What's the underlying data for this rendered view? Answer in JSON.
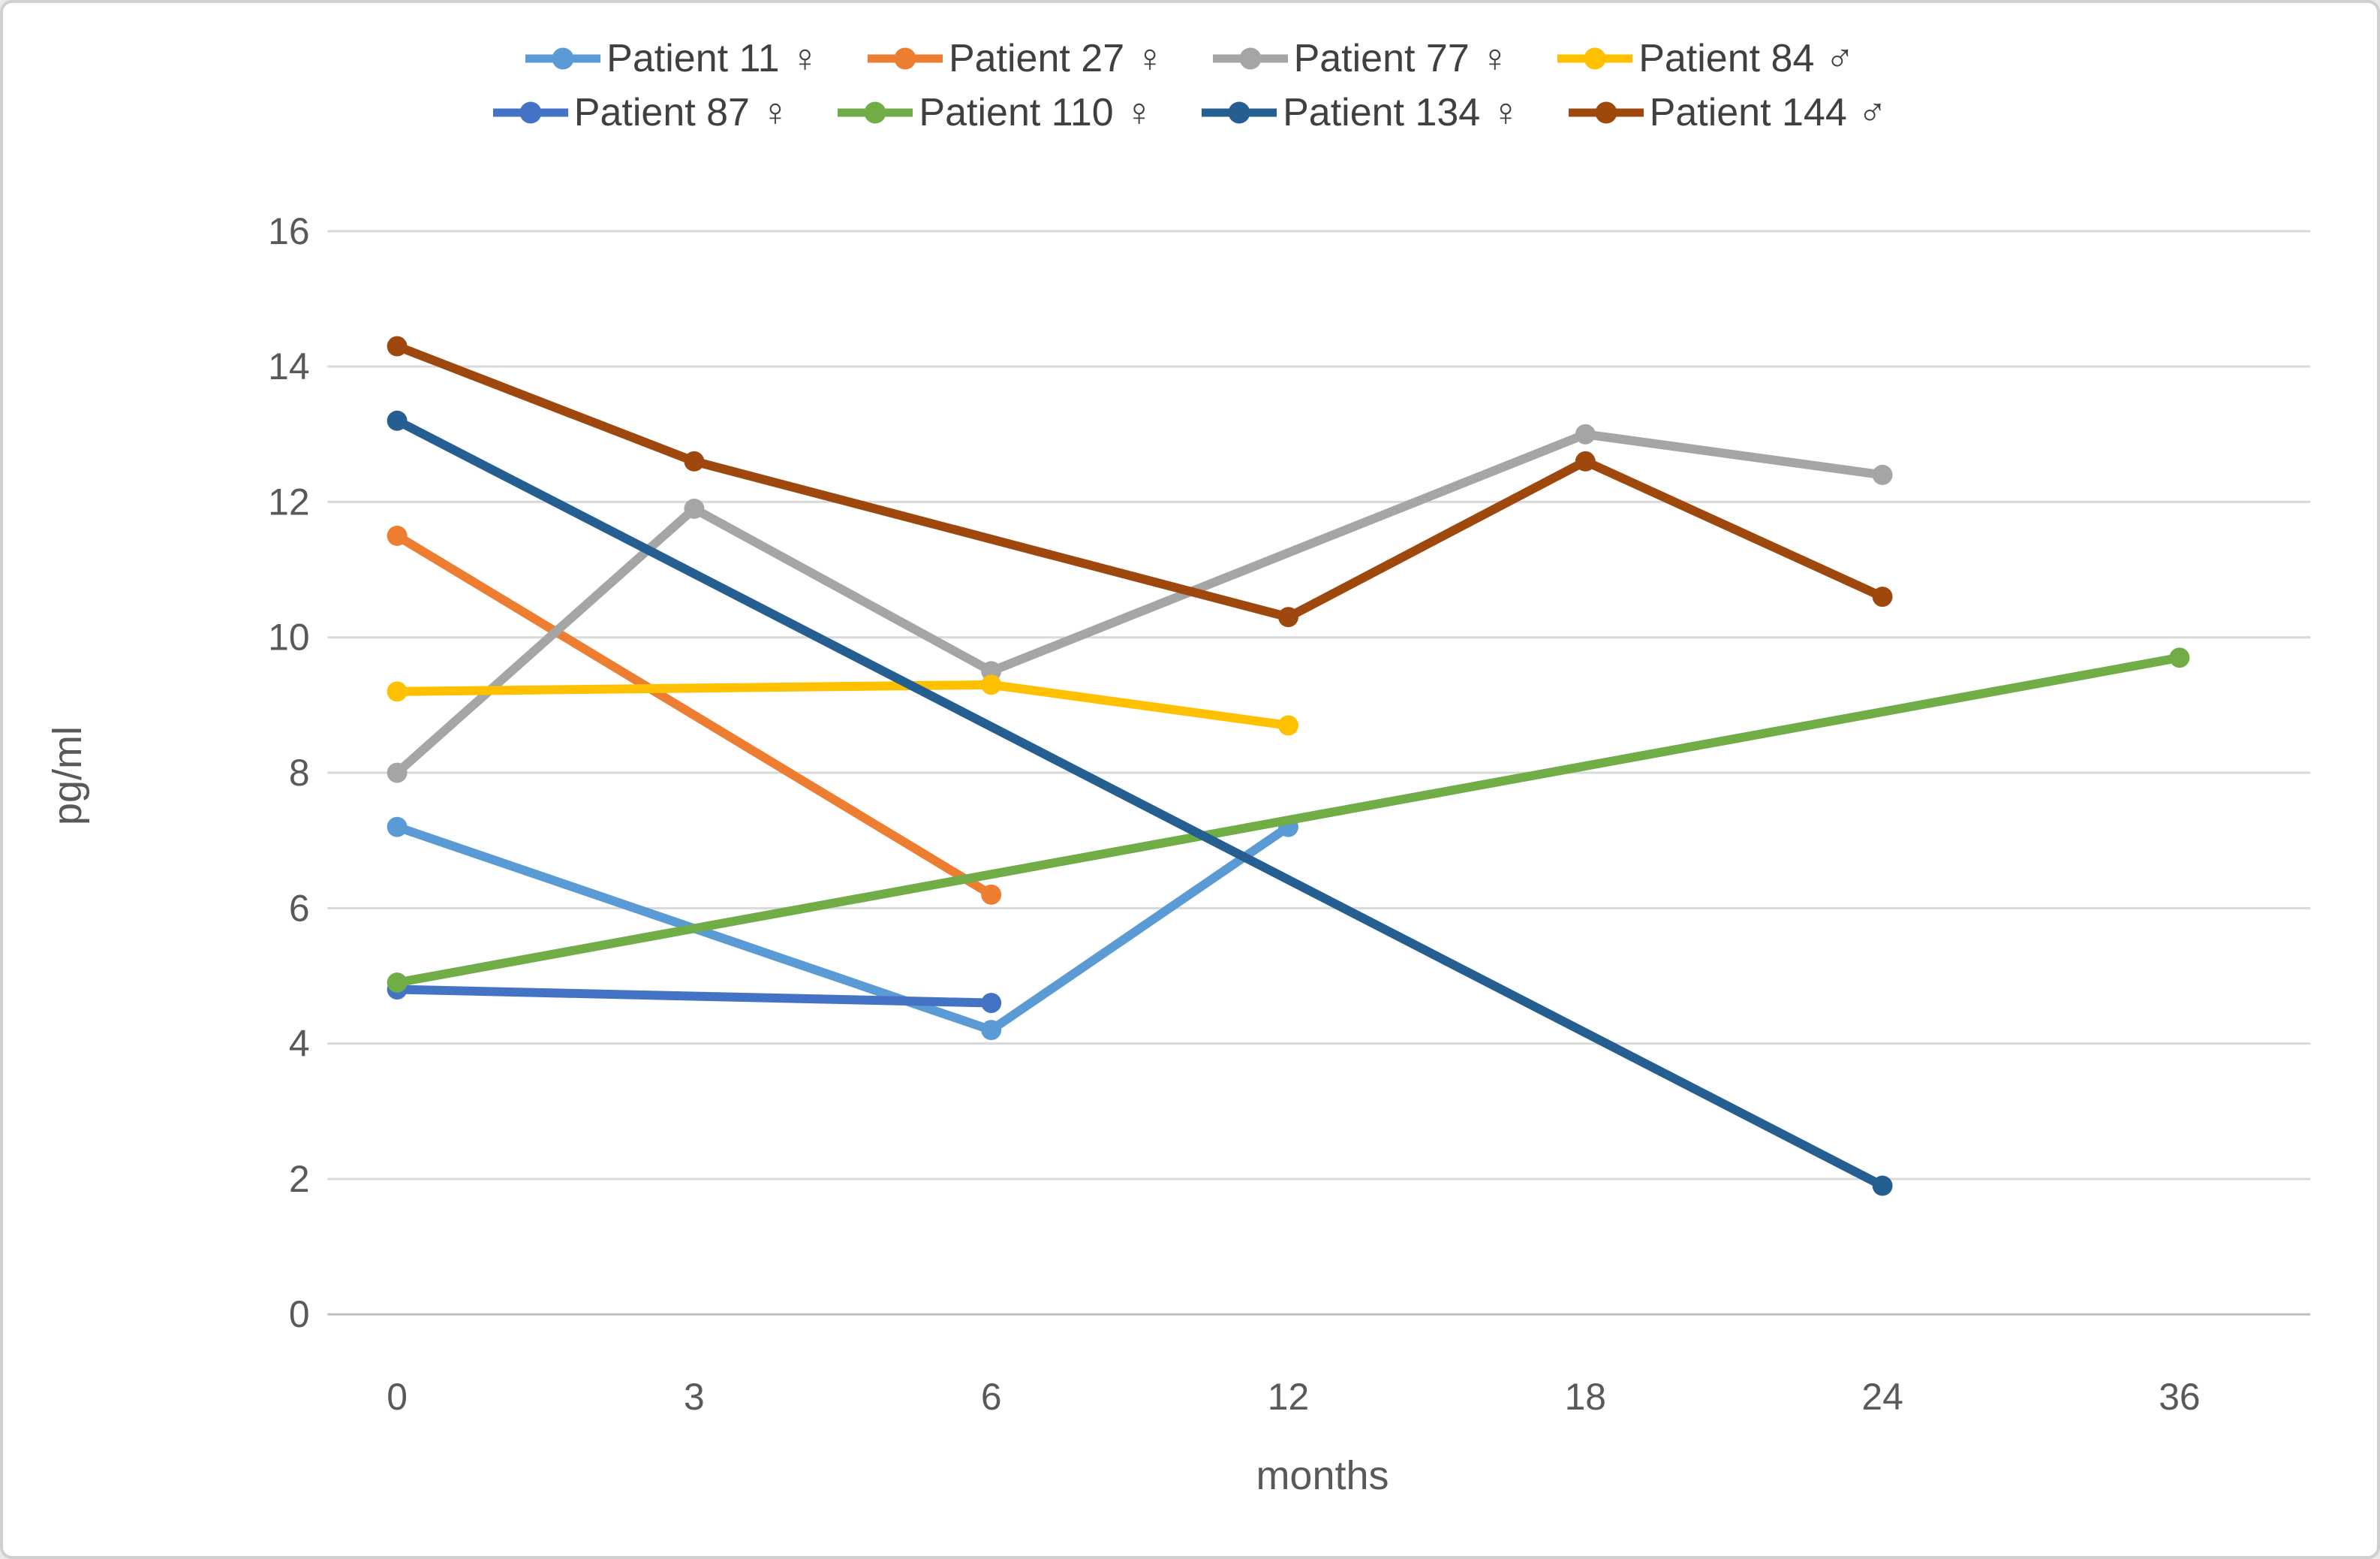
{
  "chart_data": {
    "type": "line",
    "title": "",
    "xlabel": "months",
    "ylabel": "pg/ml",
    "x_tick_labels": [
      "0",
      "3",
      "6",
      "12",
      "18",
      "24",
      "36"
    ],
    "y_tick_labels": [
      "0",
      "2",
      "4",
      "6",
      "8",
      "10",
      "12",
      "14",
      "16"
    ],
    "ylim": [
      0,
      16
    ],
    "grid": true,
    "legend_position": "top",
    "legend_items_per_row": 4,
    "colors": {
      "background": "#FFFFFF",
      "frame_border": "#CFCFCF",
      "grid": "#D9D9D9",
      "axis_line": "#BFBFBF",
      "tick_text": "#595959",
      "axis_title_text": "#595959",
      "legend_text": "#404040"
    },
    "series": [
      {
        "name": "Patient 11 ♀",
        "color": "#5B9BD5",
        "points": [
          {
            "x": 0,
            "y": 7.2
          },
          {
            "x": 6,
            "y": 4.2
          },
          {
            "x": 12,
            "y": 7.2
          }
        ]
      },
      {
        "name": "Patient 27 ♀",
        "color": "#ED7D31",
        "points": [
          {
            "x": 0,
            "y": 11.5
          },
          {
            "x": 6,
            "y": 6.2
          }
        ]
      },
      {
        "name": "Patient 77 ♀",
        "color": "#A5A5A5",
        "points": [
          {
            "x": 0,
            "y": 8.0
          },
          {
            "x": 3,
            "y": 11.9
          },
          {
            "x": 6,
            "y": 9.5
          },
          {
            "x": 18,
            "y": 13.0
          },
          {
            "x": 24,
            "y": 12.4
          }
        ]
      },
      {
        "name": "Patient 84 ♂",
        "color": "#FFC000",
        "points": [
          {
            "x": 0,
            "y": 9.2
          },
          {
            "x": 6,
            "y": 9.3
          },
          {
            "x": 12,
            "y": 8.7
          }
        ]
      },
      {
        "name": "Patient 87 ♀",
        "color": "#4472C4",
        "points": [
          {
            "x": 0,
            "y": 4.8
          },
          {
            "x": 6,
            "y": 4.6
          }
        ]
      },
      {
        "name": "Patient 110 ♀",
        "color": "#70AD47",
        "points": [
          {
            "x": 0,
            "y": 4.9
          },
          {
            "x": 36,
            "y": 9.7
          }
        ]
      },
      {
        "name": "Patient 134 ♀",
        "color": "#255E91",
        "points": [
          {
            "x": 0,
            "y": 13.2
          },
          {
            "x": 24,
            "y": 1.9
          }
        ]
      },
      {
        "name": "Patient 144 ♂",
        "color": "#9E480E",
        "points": [
          {
            "x": 0,
            "y": 14.3
          },
          {
            "x": 3,
            "y": 12.6
          },
          {
            "x": 12,
            "y": 10.3
          },
          {
            "x": 18,
            "y": 12.6
          },
          {
            "x": 24,
            "y": 10.6
          }
        ]
      }
    ]
  }
}
